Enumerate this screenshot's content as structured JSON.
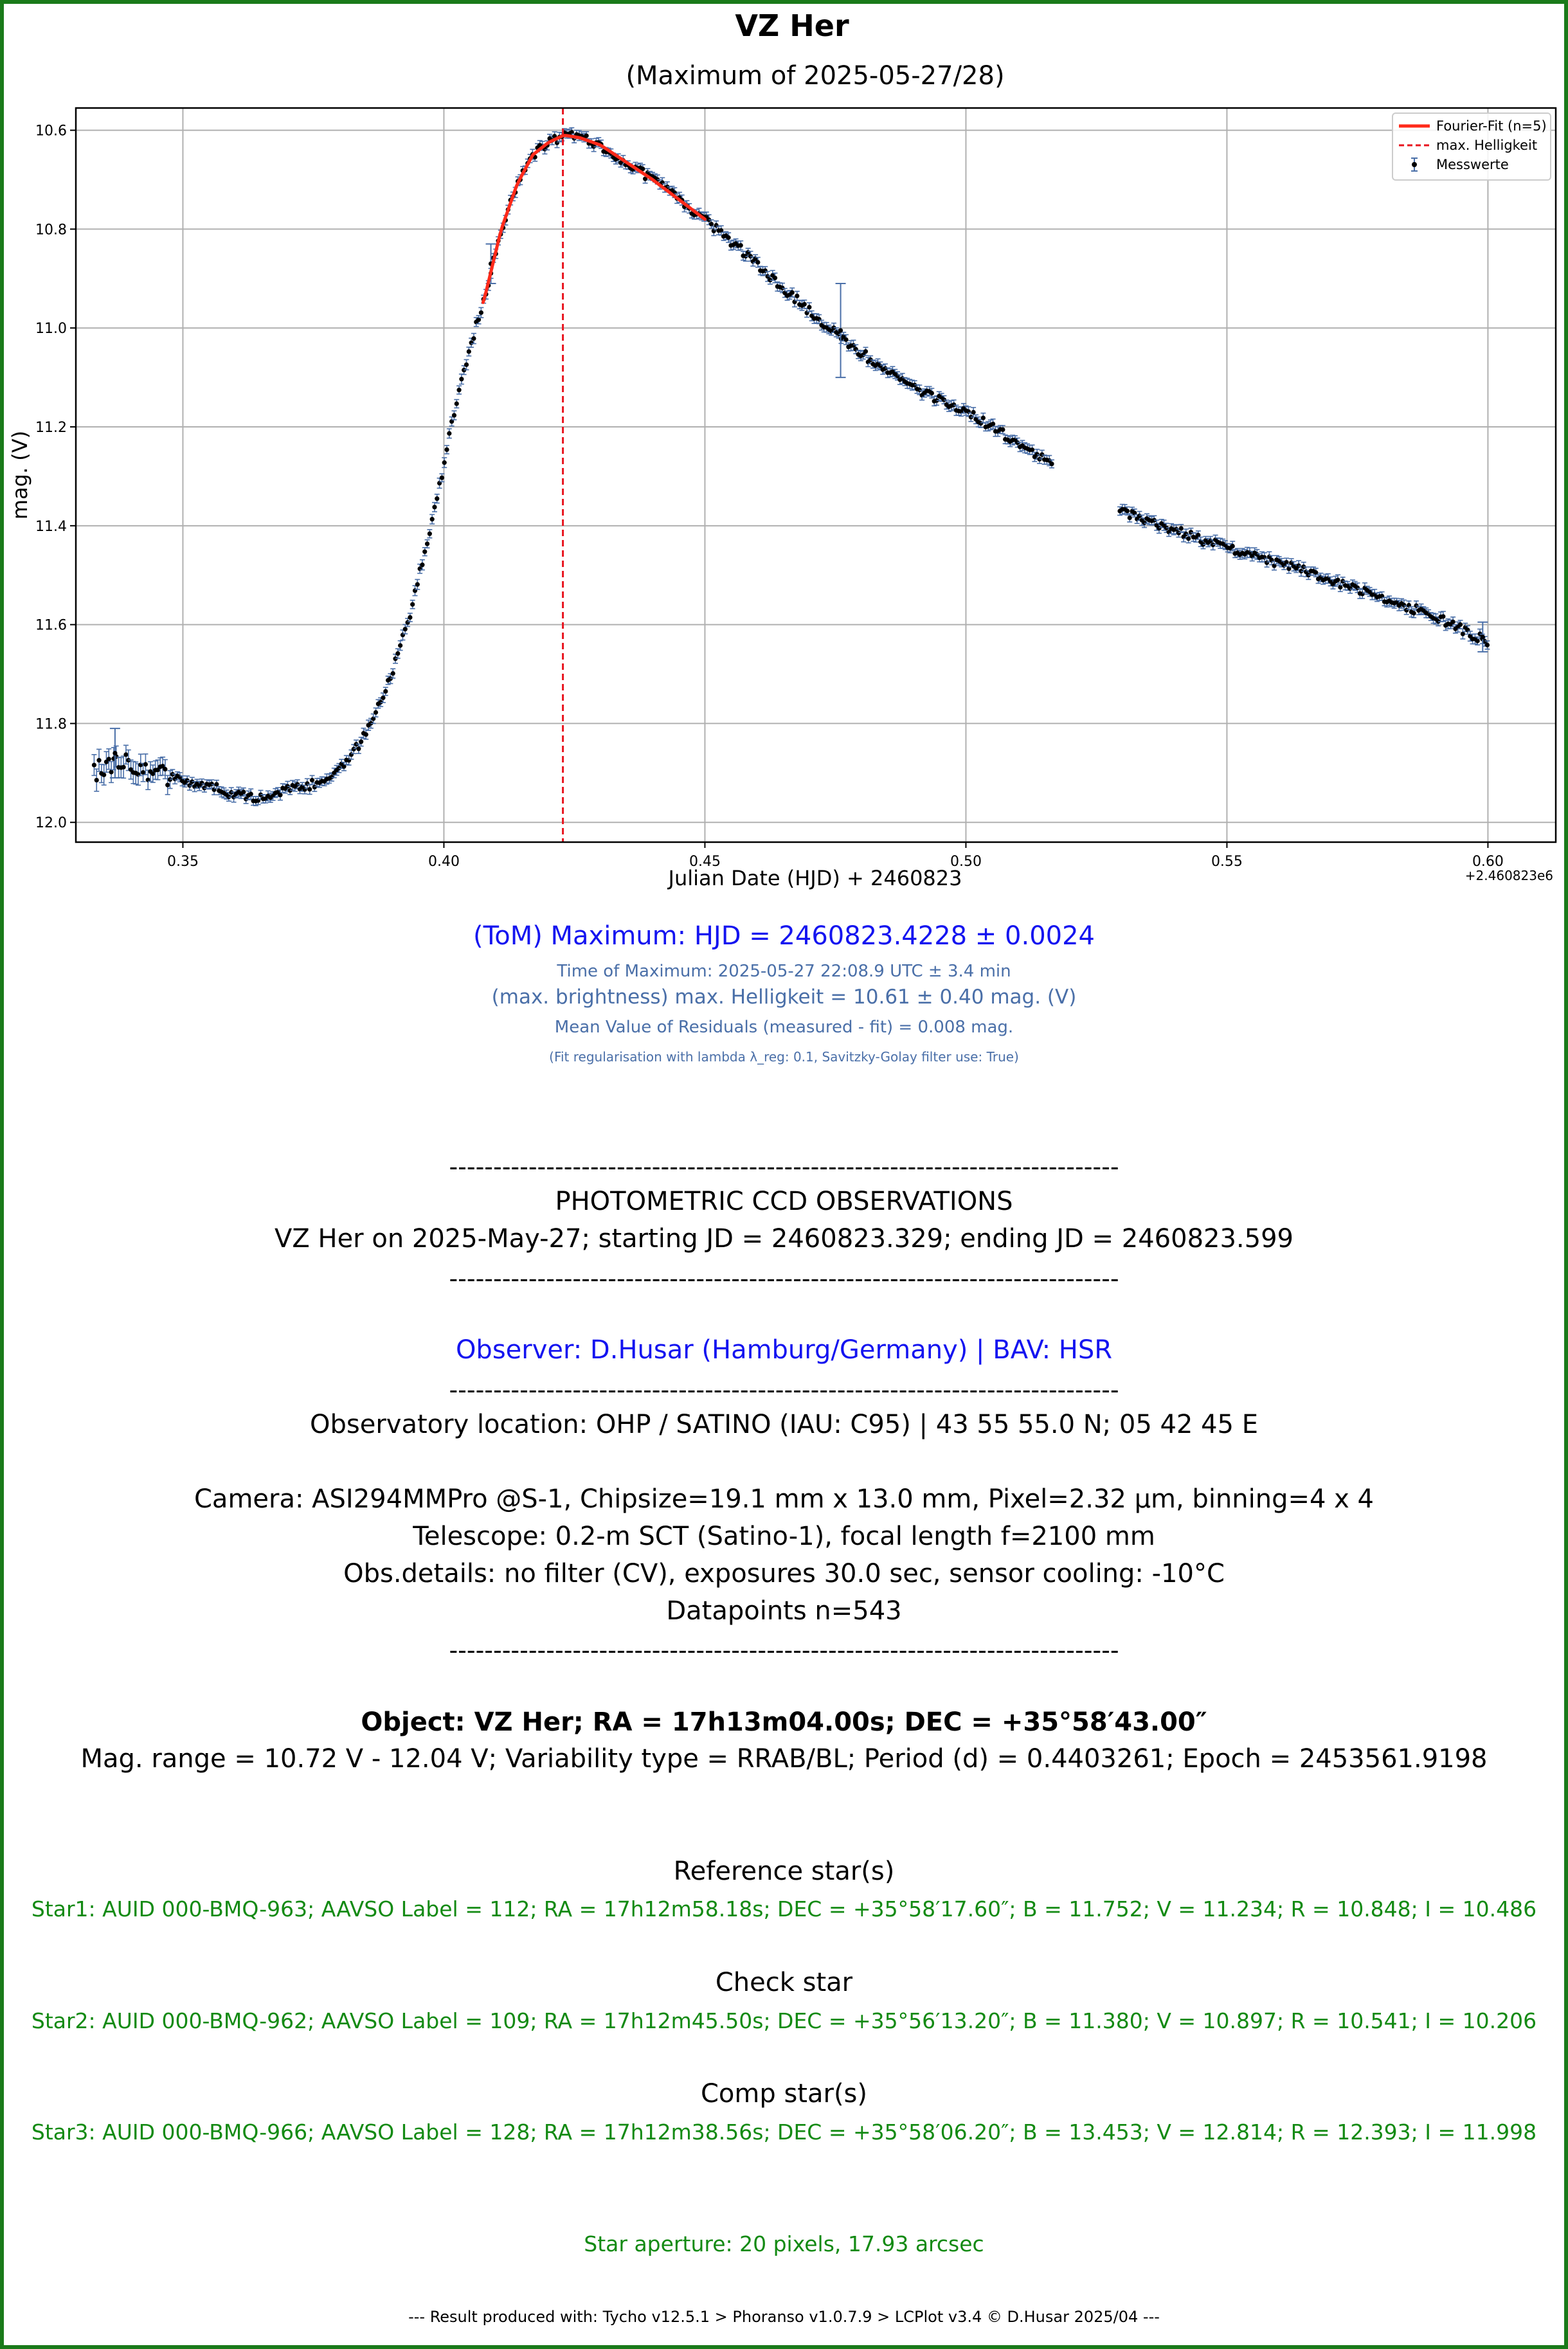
{
  "chart_data": {
    "type": "scatter",
    "title": "VZ Her",
    "subtitle": "(Maximum of 2025-05-27/28)",
    "xlabel": "Julian Date (HJD) + 2460823",
    "ylabel": "mag. (V)",
    "x_offset_label": "+2.460823e6",
    "xlim": [
      0.3295,
      0.613
    ],
    "ylim": [
      12.04,
      10.555
    ],
    "y_inverted": true,
    "grid": true,
    "legend_position": "top-right",
    "x_ticks": [
      0.35,
      0.4,
      0.45,
      0.5,
      0.55,
      0.6
    ],
    "x_tick_labels": [
      "0.35",
      "0.40",
      "0.45",
      "0.50",
      "0.55",
      "0.60"
    ],
    "y_ticks": [
      10.6,
      10.8,
      11.0,
      11.2,
      11.4,
      11.6,
      11.8,
      12.0
    ],
    "y_tick_labels": [
      "10.6",
      "10.8",
      "11.0",
      "11.2",
      "11.4",
      "11.6",
      "11.8",
      "12.0"
    ],
    "series": [
      {
        "name": "Messwerte",
        "kind": "errorbar-points",
        "color": "#000000",
        "errorbar_color": "#4a6fa8",
        "n_points": 543,
        "light_curve": [
          [
            0.333,
            11.9
          ],
          [
            0.336,
            11.88
          ],
          [
            0.339,
            11.87
          ],
          [
            0.342,
            11.89
          ],
          [
            0.345,
            11.9
          ],
          [
            0.348,
            11.91
          ],
          [
            0.352,
            11.92
          ],
          [
            0.356,
            11.93
          ],
          [
            0.36,
            11.945
          ],
          [
            0.364,
            11.95
          ],
          [
            0.368,
            11.94
          ],
          [
            0.372,
            11.93
          ],
          [
            0.376,
            11.92
          ],
          [
            0.38,
            11.89
          ],
          [
            0.384,
            11.84
          ],
          [
            0.387,
            11.78
          ],
          [
            0.39,
            11.7
          ],
          [
            0.393,
            11.6
          ],
          [
            0.396,
            11.47
          ],
          [
            0.399,
            11.33
          ],
          [
            0.402,
            11.17
          ],
          [
            0.405,
            11.04
          ],
          [
            0.408,
            10.93
          ],
          [
            0.411,
            10.8
          ],
          [
            0.414,
            10.71
          ],
          [
            0.417,
            10.65
          ],
          [
            0.42,
            10.625
          ],
          [
            0.423,
            10.61
          ],
          [
            0.426,
            10.615
          ],
          [
            0.43,
            10.63
          ],
          [
            0.435,
            10.665
          ],
          [
            0.44,
            10.7
          ],
          [
            0.445,
            10.74
          ],
          [
            0.45,
            10.78
          ],
          [
            0.455,
            10.825
          ],
          [
            0.46,
            10.87
          ],
          [
            0.465,
            10.92
          ],
          [
            0.47,
            10.965
          ],
          [
            0.475,
            11.01
          ],
          [
            0.48,
            11.05
          ],
          [
            0.485,
            11.09
          ],
          [
            0.49,
            11.12
          ],
          [
            0.495,
            11.145
          ],
          [
            0.5,
            11.17
          ],
          [
            0.505,
            11.2
          ],
          [
            0.51,
            11.235
          ],
          [
            0.516,
            11.27
          ],
          [
            0.53,
            11.37
          ],
          [
            0.54,
            11.41
          ],
          [
            0.55,
            11.445
          ],
          [
            0.56,
            11.475
          ],
          [
            0.57,
            11.51
          ],
          [
            0.58,
            11.545
          ],
          [
            0.59,
            11.585
          ],
          [
            0.6,
            11.635
          ]
        ],
        "gaps_x": [
          [
            0.5168,
            0.5295
          ]
        ],
        "scatter_mag": 0.009,
        "error_mag": 0.008,
        "large_error_points": [
          {
            "x": 0.476,
            "y": 11.005,
            "err": 0.095
          },
          {
            "x": 0.409,
            "y": 10.87,
            "err": 0.04
          },
          {
            "x": 0.337,
            "y": 11.86,
            "err": 0.05
          },
          {
            "x": 0.599,
            "y": 11.625,
            "err": 0.03
          }
        ]
      },
      {
        "name": "Fourier-Fit (n=5)",
        "kind": "line",
        "color": "#ff2a1a",
        "x_range": [
          0.4075,
          0.45
        ]
      },
      {
        "name": "max. Helligkeit",
        "kind": "vline-dashed",
        "color": "#e8141e",
        "x": 0.4228
      }
    ]
  },
  "results": {
    "tom_maximum": "(ToM) Maximum: HJD = 2460823.4228 ± 0.0024",
    "time_of_maximum": "Time of Maximum:   2025-05-27   22:08.9 UTC ± 3.4 min",
    "max_brightness": "(max. brightness) max. Helligkeit = 10.61 ± 0.40 mag. (V)",
    "mean_residuals": "Mean Value of Residuals (measured - fit) = 0.008 mag.",
    "fit_note": "(Fit regularisation with lambda λ_reg: 0.1, Savitzky-Golay filter use: True)"
  },
  "report": {
    "separator": "----------------------------------------------------------------------------",
    "heading": "PHOTOMETRIC CCD OBSERVATIONS",
    "obs_line": "VZ Her on 2025-May-27; starting JD = 2460823.329; ending JD = 2460823.599",
    "observer": "Observer: D.Husar (Hamburg/Germany) | BAV: HSR",
    "location": "Observatory location: OHP / SATINO (IAU: C95) | 43 55 55.0 N; 05 42 45 E",
    "camera": "Camera: ASI294MMPro @S-1, Chipsize=19.1 mm x 13.0 mm, Pixel=2.32 µm, binning=4 x 4",
    "telescope": "Telescope: 0.2-m SCT (Satino-1), focal length f=2100 mm",
    "obs_details": "Obs.details: no filter (CV), exposures 30.0 sec, sensor cooling: -10°C",
    "datapoints": "Datapoints n=543",
    "object": "Object: VZ Her; RA = 17h13m04.00s; DEC = +35°58′43.00″",
    "mag_range": "Mag. range = 10.72 V - 12.04 V; Variability type = RRAB/BL; Period (d) = 0.4403261; Epoch = 2453561.9198",
    "ref_heading": "Reference star(s)",
    "ref_star": "Star1: AUID 000-BMQ-963; AAVSO Label = 112; RA = 17h12m58.18s; DEC = +35°58′17.60″; B = 11.752; V = 11.234; R = 10.848; I = 10.486",
    "check_heading": "Check star",
    "check_star": "Star2: AUID 000-BMQ-962; AAVSO Label = 109; RA = 17h12m45.50s; DEC = +35°56′13.20″; B = 11.380; V = 10.897; R = 10.541; I = 10.206",
    "comp_heading": "Comp star(s)",
    "comp_star": "Star3: AUID 000-BMQ-966; AAVSO Label = 128; RA = 17h12m38.56s; DEC = +35°58′06.20″; B = 13.453; V = 12.814; R = 12.393; I = 11.998",
    "aperture": "Star aperture: 20 pixels, 17.93 arcsec",
    "footer": "---  Result produced with: Tycho v12.5.1 > Phoranso v1.0.7.9 > LCPlot v3.4 © D.Husar 2025/04  ---"
  },
  "colors": {
    "frame": "#1a7a1a",
    "blue": "#1414f0",
    "slate": "#4a6fa8",
    "green": "#138a13"
  }
}
